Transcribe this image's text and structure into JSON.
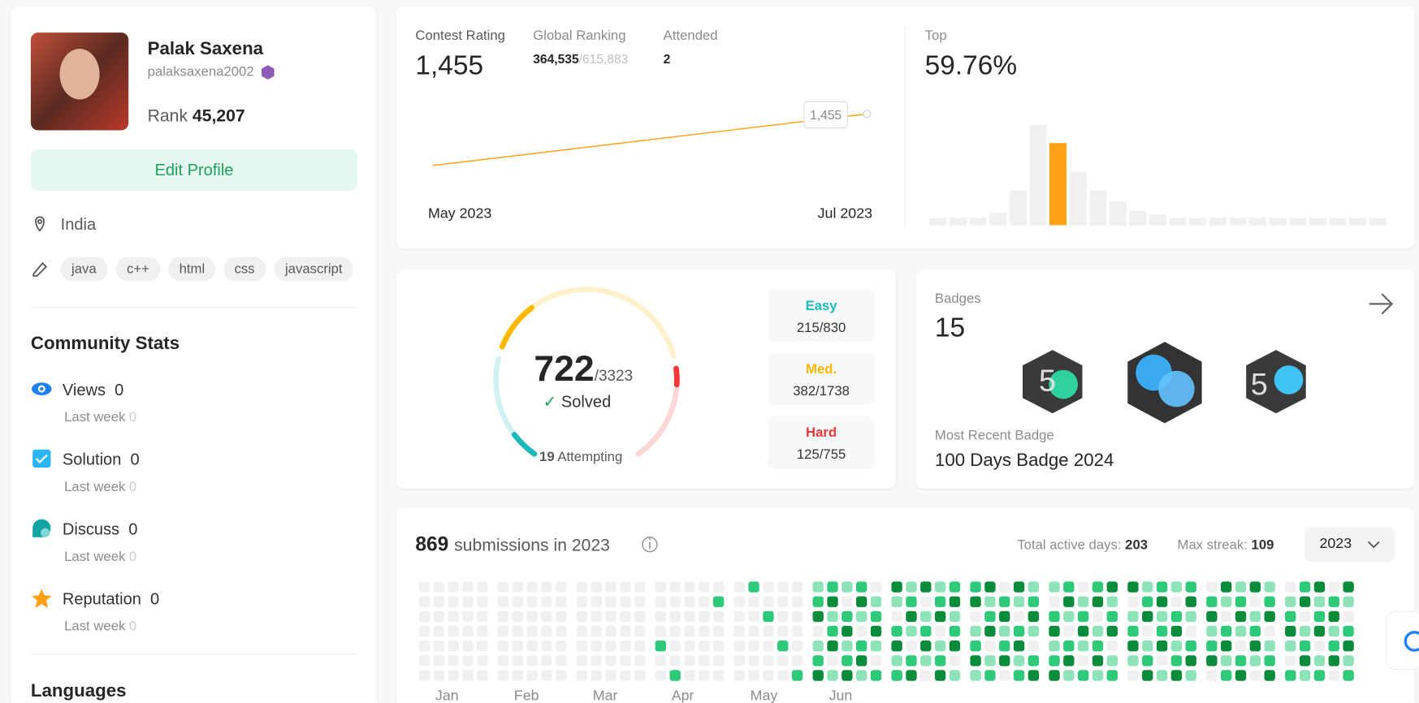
{
  "profile": {
    "name": "Palak Saxena",
    "username": "palaksaxena2002",
    "rank_label": "Rank",
    "rank": "45,207",
    "edit_button": "Edit Profile",
    "location": "India",
    "skills": [
      "java",
      "c++",
      "html",
      "css",
      "javascript"
    ]
  },
  "community_stats": {
    "title": "Community Stats",
    "items": [
      {
        "label": "Views",
        "value": 0,
        "sub_label": "Last week",
        "sub_value": 0
      },
      {
        "label": "Solution",
        "value": 0,
        "sub_label": "Last week",
        "sub_value": 0
      },
      {
        "label": "Discuss",
        "value": 0,
        "sub_label": "Last week",
        "sub_value": 0
      },
      {
        "label": "Reputation",
        "value": 0,
        "sub_label": "Last week",
        "sub_value": 0
      }
    ]
  },
  "languages_title": "Languages",
  "contest": {
    "rating_label": "Contest Rating",
    "rating": "1,455",
    "ranking_label": "Global Ranking",
    "ranking": "364,535",
    "ranking_total": "/615,883",
    "attended_label": "Attended",
    "attended": 2,
    "top_label": "Top",
    "top_value": "59.76%"
  },
  "chart_data": [
    {
      "type": "line",
      "categories": [
        "May 2023",
        "Jul 2023"
      ],
      "values": [
        1408,
        1455
      ],
      "value_labels": [
        null,
        "1,455"
      ],
      "color": "#ffa116"
    },
    {
      "type": "bar",
      "values": [
        8,
        8,
        8,
        14,
        38,
        110,
        90,
        58,
        38,
        26,
        16,
        12,
        8,
        8,
        8,
        8,
        8,
        8,
        8,
        8,
        8,
        8,
        8
      ],
      "color": "#f0f0f2",
      "highlight_color": "#ffa116",
      "highlight_index": 6
    }
  ],
  "solved": {
    "solved": 722,
    "total_label": "/3323",
    "solved_label": "Solved",
    "attempting": 19,
    "attempting_label": "Attempting",
    "difficulties": [
      {
        "name": "Easy",
        "count": "215/830",
        "solved": 215,
        "total": 830,
        "color": "#1cbaba"
      },
      {
        "name": "Med.",
        "count": "382/1738",
        "solved": 382,
        "total": 1738,
        "color": "#ffb800"
      },
      {
        "name": "Hard",
        "count": "125/755",
        "solved": 125,
        "total": 755,
        "color": "#f63737"
      }
    ]
  },
  "badges": {
    "label": "Badges",
    "count": 15,
    "recent_label": "Most Recent Badge",
    "recent": "100 Days Badge 2024"
  },
  "submissions": {
    "count": 869,
    "text": "submissions in 2023",
    "active_label": "Total active days:",
    "active": 203,
    "streak_label": "Max streak:",
    "streak": 109,
    "year": "2023",
    "months": [
      "Jan",
      "Feb",
      "Mar",
      "Apr",
      "May",
      "Jun"
    ]
  }
}
